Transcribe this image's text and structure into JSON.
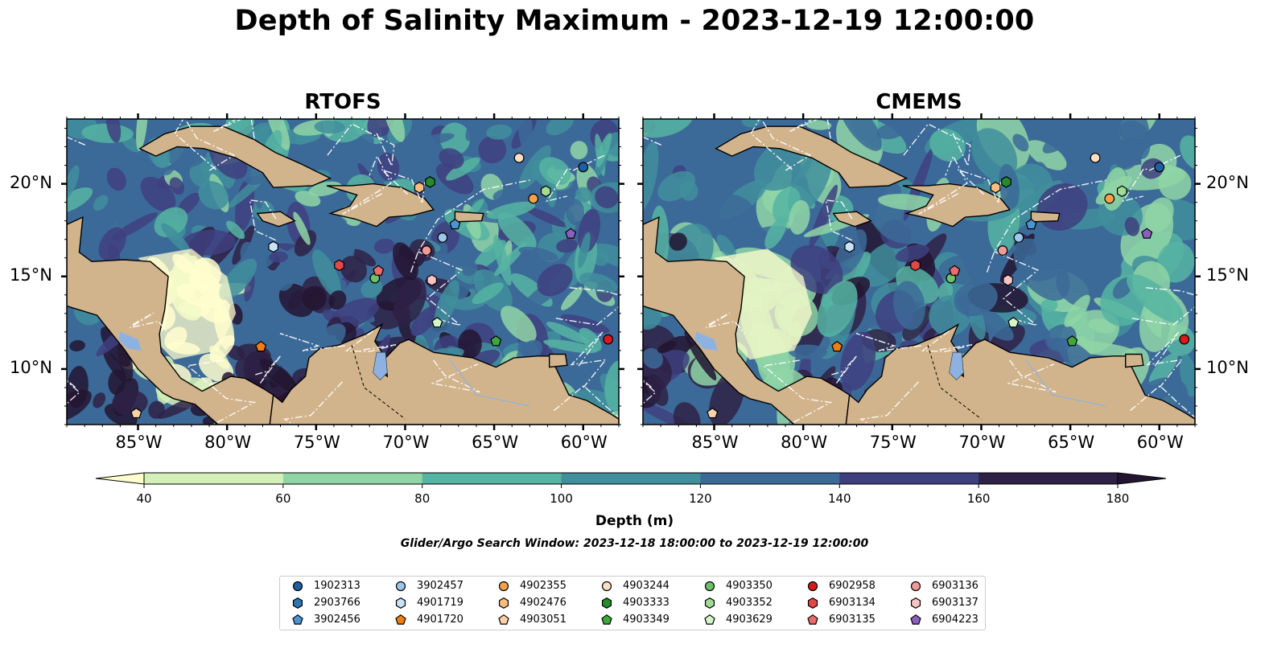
{
  "title": "Depth of Salinity Maximum - 2023-12-19 12:00:00",
  "panels": [
    {
      "title": "RTOFS"
    },
    {
      "title": "CMEMS"
    }
  ],
  "axes": {
    "lon_ticks": [
      "85°W",
      "80°W",
      "75°W",
      "70°W",
      "65°W",
      "60°W"
    ],
    "lon_values": [
      -85,
      -80,
      -75,
      -70,
      -65,
      -60
    ],
    "lat_ticks": [
      "20°N",
      "15°N",
      "10°N"
    ],
    "lat_values": [
      20,
      15,
      10
    ],
    "lon_range": [
      -89,
      -58
    ],
    "lat_range": [
      7,
      23.5
    ]
  },
  "colorbar": {
    "label": "Depth (m)",
    "ticks": [
      "40",
      "60",
      "80",
      "100",
      "120",
      "140",
      "160",
      "180"
    ],
    "colors": [
      "#fffdcd",
      "#d4f0b8",
      "#8fd5a6",
      "#56b4a2",
      "#418e9c",
      "#3c6a98",
      "#3e3f7f",
      "#2e2145",
      "#231531"
    ],
    "extend": "both"
  },
  "search_window": "Glider/Argo Search Window: 2023-12-18 18:00:00 to 2023-12-19 12:00:00",
  "land_color": "#d2b48c",
  "lake_color": "#8db2e2",
  "chart_data": {
    "type": "scatter",
    "title": "Depth of Salinity Maximum - 2023-12-19 12:00:00",
    "series": [
      {
        "name": "1902313",
        "lon": -60.0,
        "lat": 20.9,
        "color": "#1f5fa0",
        "marker": "circle"
      },
      {
        "name": "2903766",
        "lon": null,
        "lat": null,
        "color": "#2e75b6",
        "marker": "hexagon"
      },
      {
        "name": "3902456",
        "lon": -67.2,
        "lat": 17.8,
        "color": "#4b94d4",
        "marker": "pentagon"
      },
      {
        "name": "3902457",
        "lon": -67.9,
        "lat": 17.1,
        "color": "#9cc6ea",
        "marker": "circle"
      },
      {
        "name": "4901719",
        "lon": -77.4,
        "lat": 16.6,
        "color": "#c8e2f7",
        "marker": "hexagon"
      },
      {
        "name": "4901720",
        "lon": -78.1,
        "lat": 11.2,
        "color": "#f07d12",
        "marker": "pentagon"
      },
      {
        "name": "4902355",
        "lon": -62.8,
        "lat": 19.2,
        "color": "#f5a14a",
        "marker": "circle"
      },
      {
        "name": "4902476",
        "lon": -69.2,
        "lat": 19.8,
        "color": "#f9bd7f",
        "marker": "hexagon"
      },
      {
        "name": "4903051",
        "lon": -85.1,
        "lat": 7.6,
        "color": "#fbd2a8",
        "marker": "pentagon"
      },
      {
        "name": "4903244",
        "lon": -63.6,
        "lat": 21.4,
        "color": "#fde0c4",
        "marker": "circle"
      },
      {
        "name": "4903333",
        "lon": -68.6,
        "lat": 20.1,
        "color": "#248c2c",
        "marker": "hexagon"
      },
      {
        "name": "4903349",
        "lon": -64.9,
        "lat": 11.5,
        "color": "#3ea83e",
        "marker": "pentagon"
      },
      {
        "name": "4903350",
        "lon": -71.7,
        "lat": 14.9,
        "color": "#6ec16a",
        "marker": "circle"
      },
      {
        "name": "4903352",
        "lon": -62.1,
        "lat": 19.6,
        "color": "#a0dc95",
        "marker": "hexagon"
      },
      {
        "name": "4903629",
        "lon": -68.2,
        "lat": 12.5,
        "color": "#d4f5c8",
        "marker": "pentagon"
      },
      {
        "name": "6902958",
        "lon": -58.6,
        "lat": 11.6,
        "color": "#d7191c",
        "marker": "circle"
      },
      {
        "name": "6903134",
        "lon": -73.7,
        "lat": 15.6,
        "color": "#e24848",
        "marker": "hexagon"
      },
      {
        "name": "6903135",
        "lon": -71.5,
        "lat": 15.3,
        "color": "#ee6b6b",
        "marker": "pentagon"
      },
      {
        "name": "6903136",
        "lon": -68.8,
        "lat": 16.4,
        "color": "#f29a9a",
        "marker": "circle"
      },
      {
        "name": "6903137",
        "lon": -68.5,
        "lat": 14.8,
        "color": "#f7c4c4",
        "marker": "hexagon"
      },
      {
        "name": "6904223",
        "lon": -60.7,
        "lat": 17.3,
        "color": "#8b5fbf",
        "marker": "pentagon"
      }
    ],
    "xlim": [
      -89,
      -58
    ],
    "ylim": [
      7,
      23.5
    ],
    "legend": "bottom"
  }
}
